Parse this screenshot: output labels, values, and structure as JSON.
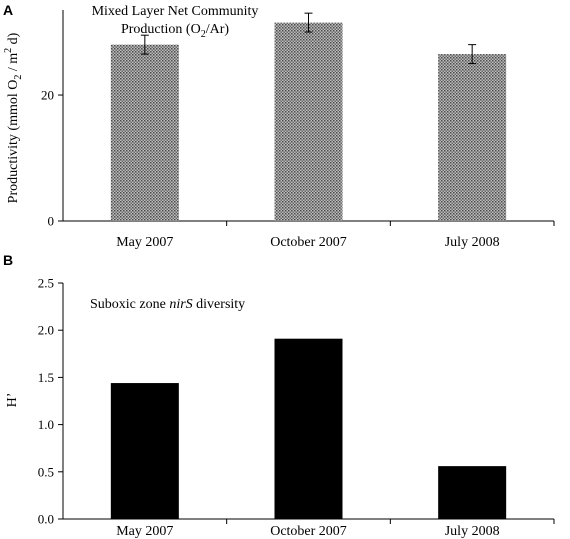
{
  "chart_data": [
    {
      "panel": "A",
      "type": "bar",
      "title_line1": "Mixed Layer Net Community",
      "title_line2_prefix": "Production (O",
      "title_line2_sub": "2",
      "title_line2_suffix": "/Ar)",
      "ylabel_prefix": "Productivity (mmol O",
      "ylabel_sub": "2",
      "ylabel_mid": " / m",
      "ylabel_sup": "2",
      "ylabel_suffix": " d)",
      "categories": [
        "May 2007",
        "October 2007",
        "July 2008"
      ],
      "values": [
        28,
        31.5,
        26.5
      ],
      "error": [
        1.5,
        1.5,
        1.5
      ],
      "yticks": [
        "0",
        "20"
      ],
      "ytick_values": [
        0,
        20
      ],
      "ylim": [
        0,
        33.5
      ],
      "bar_fill": "pattern-grey"
    },
    {
      "panel": "B",
      "type": "bar",
      "annotation_prefix": "Suboxic zone ",
      "annotation_italic": "nirS",
      "annotation_suffix": " diversity",
      "ylabel": "H’",
      "categories": [
        "May 2007",
        "October 2007",
        "July 2008"
      ],
      "values": [
        1.44,
        1.91,
        0.56
      ],
      "yticks": [
        "0.0",
        "0.5",
        "1.0",
        "1.5",
        "2.0",
        "2.5"
      ],
      "ytick_values": [
        0,
        0.5,
        1.0,
        1.5,
        2.0,
        2.5
      ],
      "ylim": [
        0,
        2.5
      ],
      "bar_fill": "#000000"
    }
  ]
}
